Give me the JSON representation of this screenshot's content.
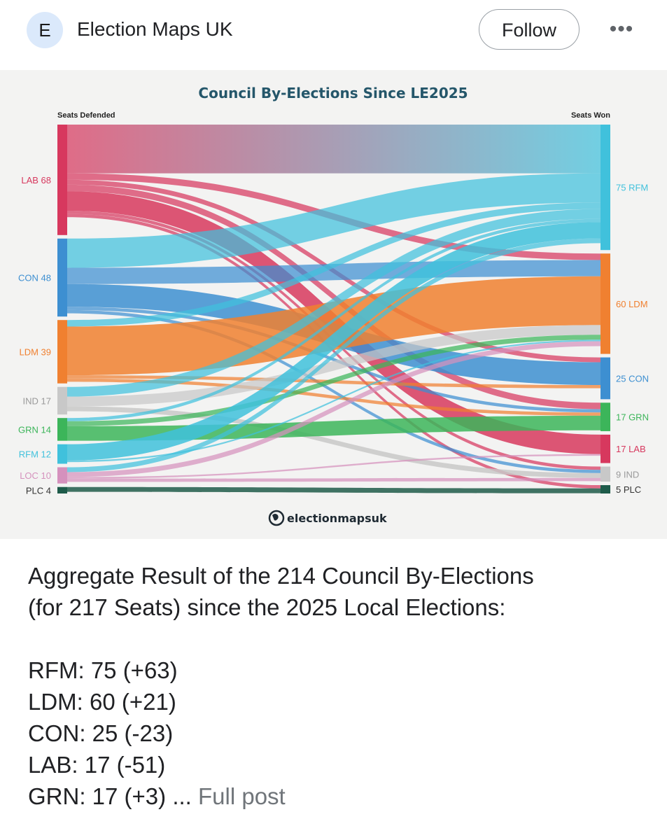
{
  "header": {
    "avatar_letter": "E",
    "author": "Election Maps UK",
    "follow_label": "Follow",
    "more_label": "•••"
  },
  "chart_data": {
    "type": "sankey",
    "title": "Council By-Elections Since LE2025",
    "left_axis_label": "Seats Defended",
    "right_axis_label": "Seats Won",
    "credit": "electionmapsuk",
    "left_nodes": [
      {
        "party": "LAB",
        "value": 68,
        "label": "LAB 68",
        "color": "#d7385e"
      },
      {
        "party": "CON",
        "value": 48,
        "label": "CON 48",
        "color": "#3d8fd1"
      },
      {
        "party": "LDM",
        "value": 39,
        "label": "LDM 39",
        "color": "#f08030"
      },
      {
        "party": "IND",
        "value": 17,
        "label": "IND 17",
        "color": "#c8c8c8"
      },
      {
        "party": "GRN",
        "value": 14,
        "label": "GRN 14",
        "color": "#3cb55a"
      },
      {
        "party": "RFM",
        "value": 12,
        "label": "RFM 12",
        "color": "#40c1dc"
      },
      {
        "party": "LOC",
        "value": 10,
        "label": "LOC 10",
        "color": "#d591bd"
      },
      {
        "party": "PLC",
        "value": 4,
        "label": "PLC 4",
        "color": "#1e5b4a"
      }
    ],
    "right_nodes": [
      {
        "party": "RFM",
        "value": 75,
        "label": "75 RFM",
        "color": "#40c1dc"
      },
      {
        "party": "LDM",
        "value": 60,
        "label": "60 LDM",
        "color": "#f08030"
      },
      {
        "party": "CON",
        "value": 25,
        "label": "25 CON",
        "color": "#3d8fd1"
      },
      {
        "party": "GRN",
        "value": 17,
        "label": "17 GRN",
        "color": "#3cb55a"
      },
      {
        "party": "LAB",
        "value": 17,
        "label": "17 LAB",
        "color": "#d7385e"
      },
      {
        "party": "IND",
        "value": 9,
        "label": "9 IND",
        "color": "#c8c8c8"
      },
      {
        "party": "PLC",
        "value": 5,
        "label": "5 PLC",
        "color": "#1e5b4a"
      }
    ],
    "flows": [
      {
        "from": "LAB",
        "to": "RFM",
        "value": 30
      },
      {
        "from": "LAB",
        "to": "LDM",
        "value": 4
      },
      {
        "from": "LAB",
        "to": "CON",
        "value": 3
      },
      {
        "from": "LAB",
        "to": "GRN",
        "value": 4
      },
      {
        "from": "LAB",
        "to": "LAB",
        "value": 12
      },
      {
        "from": "LAB",
        "to": "IND",
        "value": 2
      },
      {
        "from": "LAB",
        "to": "PLC",
        "value": 2
      },
      {
        "from": "CON",
        "to": "RFM",
        "value": 18
      },
      {
        "from": "CON",
        "to": "LDM",
        "value": 10
      },
      {
        "from": "CON",
        "to": "CON",
        "value": 14
      },
      {
        "from": "CON",
        "to": "GRN",
        "value": 2
      },
      {
        "from": "CON",
        "to": "IND",
        "value": 2
      },
      {
        "from": "LDM",
        "to": "RFM",
        "value": 4
      },
      {
        "from": "LDM",
        "to": "LDM",
        "value": 30
      },
      {
        "from": "LDM",
        "to": "CON",
        "value": 2
      },
      {
        "from": "LDM",
        "to": "GRN",
        "value": 2
      },
      {
        "from": "IND",
        "to": "RFM",
        "value": 6
      },
      {
        "from": "IND",
        "to": "LDM",
        "value": 6
      },
      {
        "from": "IND",
        "to": "IND",
        "value": 3
      },
      {
        "from": "GRN",
        "to": "GRN",
        "value": 9
      },
      {
        "from": "GRN",
        "to": "RFM",
        "value": 2
      },
      {
        "from": "GRN",
        "to": "LDM",
        "value": 3
      },
      {
        "from": "RFM",
        "to": "RFM",
        "value": 10
      },
      {
        "from": "RFM",
        "to": "LDM",
        "value": 1
      },
      {
        "from": "LOC",
        "to": "RFM",
        "value": 3
      },
      {
        "from": "LOC",
        "to": "LDM",
        "value": 3
      },
      {
        "from": "LOC",
        "to": "LAB",
        "value": 1
      },
      {
        "from": "LOC",
        "to": "IND",
        "value": 2
      },
      {
        "from": "PLC",
        "to": "PLC",
        "value": 3
      }
    ]
  },
  "post": {
    "line1": "Aggregate Result of the 214 Council By-Elections",
    "line2": "(for 217 Seats) since the 2025 Local Elections:",
    "results": [
      "RFM: 75 (+63)",
      "LDM: 60 (+21)",
      "CON: 25 (-23)",
      "LAB: 17 (-51)"
    ],
    "last_line": "GRN: 17 (+3) ...",
    "full_post_label": "Full post"
  }
}
